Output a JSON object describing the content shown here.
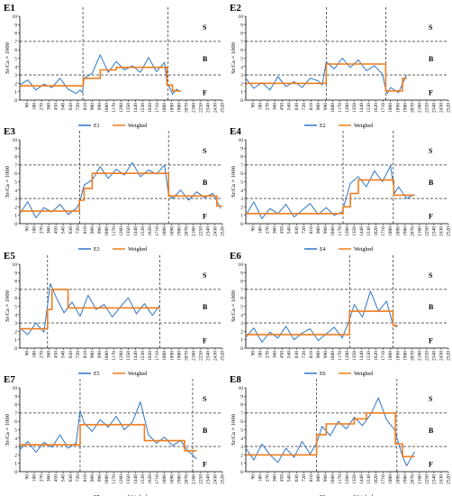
{
  "figure": {
    "ylabel": "Sr/Ca × 1000",
    "x_ticks": [
      90,
      180,
      270,
      360,
      450,
      540,
      630,
      720,
      810,
      900,
      990,
      1080,
      1170,
      1260,
      1350,
      1440,
      1530,
      1620,
      1710,
      1800,
      1890,
      1980,
      2070,
      2160,
      2250,
      2340,
      2430,
      2520
    ],
    "y_ticks": [
      0,
      1,
      2,
      3,
      4,
      5,
      6,
      7,
      8,
      9,
      10
    ],
    "colors": {
      "raw": "#2e75c8",
      "weighed": "#f07c1c",
      "threshold": "#000000"
    }
  },
  "chart_data": [
    {
      "type": "line",
      "title": "E1",
      "xlim": [
        0,
        2520
      ],
      "ylim": [
        0,
        10
      ],
      "hlines": [
        3,
        7
      ],
      "vlines": [
        785,
        1845
      ],
      "zones": [
        "S",
        "B",
        "F"
      ],
      "series": [
        {
          "name": "E1",
          "x": [
            0,
            100,
            200,
            300,
            400,
            500,
            600,
            700,
            750,
            780,
            800,
            900,
            1000,
            1100,
            1200,
            1300,
            1400,
            1500,
            1600,
            1700,
            1800,
            1830,
            1860,
            1900,
            1950,
            2000
          ],
          "y": [
            1.8,
            2.4,
            1.2,
            1.9,
            1.5,
            2.6,
            1.3,
            0.8,
            1.2,
            0.9,
            2.6,
            3.2,
            5.4,
            3.3,
            4.6,
            3.6,
            4.1,
            3.3,
            5.1,
            3.4,
            4.5,
            2.1,
            1.6,
            0.7,
            1.3,
            1.0
          ]
        },
        {
          "name": "Weighed",
          "x": [
            0,
            790,
            790,
            1000,
            1000,
            1200,
            1200,
            1830,
            1830,
            1900,
            1900,
            2000
          ],
          "y": [
            1.7,
            1.7,
            2.6,
            2.6,
            3.6,
            3.6,
            3.9,
            3.9,
            1.8,
            1.8,
            1.1,
            1.1
          ]
        }
      ],
      "legend": [
        "E1",
        "Weighed"
      ]
    },
    {
      "type": "line",
      "title": "E2",
      "xlim": [
        0,
        2520
      ],
      "ylim": [
        0,
        10
      ],
      "hlines": [
        3,
        7
      ],
      "vlines": [
        1000,
        1740
      ],
      "zones": [
        "S",
        "B",
        "F"
      ],
      "series": [
        {
          "name": "E2",
          "x": [
            0,
            100,
            200,
            300,
            400,
            500,
            600,
            700,
            800,
            900,
            950,
            1000,
            1100,
            1200,
            1300,
            1400,
            1500,
            1600,
            1700,
            1730,
            1760,
            1800,
            1900,
            2000
          ],
          "y": [
            2.6,
            1.4,
            2.1,
            1.2,
            2.8,
            1.6,
            2.2,
            1.5,
            2.6,
            2.3,
            1.8,
            4.6,
            3.7,
            5.0,
            3.9,
            4.8,
            3.5,
            4.1,
            3.1,
            1.7,
            0.8,
            1.5,
            0.9,
            3.0
          ]
        },
        {
          "name": "Weighed",
          "x": [
            0,
            1000,
            1000,
            1740,
            1740,
            1950,
            1950,
            2000
          ],
          "y": [
            2.0,
            2.0,
            4.3,
            4.3,
            1.1,
            1.1,
            2.6,
            2.6
          ]
        }
      ],
      "legend": [
        "E2",
        "Weighed"
      ]
    },
    {
      "type": "line",
      "title": "E3",
      "xlim": [
        0,
        2520
      ],
      "ylim": [
        0,
        10
      ],
      "hlines": [
        3,
        7
      ],
      "vlines": [
        745,
        1850
      ],
      "zones": [
        "S",
        "B",
        "F"
      ],
      "series": [
        {
          "name": "E3",
          "x": [
            0,
            100,
            200,
            300,
            400,
            500,
            600,
            700,
            740,
            800,
            900,
            1000,
            1100,
            1200,
            1300,
            1400,
            1500,
            1600,
            1700,
            1800,
            1850,
            1900,
            2000,
            2100,
            2200,
            2300,
            2400,
            2500
          ],
          "y": [
            1.2,
            2.6,
            0.7,
            1.9,
            1.4,
            2.3,
            1.1,
            1.8,
            2.4,
            4.6,
            5.2,
            6.8,
            5.4,
            6.5,
            5.8,
            7.3,
            5.6,
            6.4,
            5.9,
            7.0,
            3.5,
            3.0,
            4.0,
            2.8,
            3.8,
            3.1,
            3.6,
            1.8
          ]
        },
        {
          "name": "Weighed",
          "x": [
            0,
            740,
            740,
            800,
            800,
            900,
            900,
            1850,
            1850,
            2450,
            2450,
            2520
          ],
          "y": [
            1.5,
            1.5,
            2.8,
            2.8,
            4.2,
            4.2,
            6.0,
            6.0,
            3.3,
            3.3,
            2.1,
            2.1
          ]
        }
      ],
      "legend": [
        "E3",
        "Weighed"
      ]
    },
    {
      "type": "line",
      "title": "E4",
      "xlim": [
        0,
        2520
      ],
      "ylim": [
        0,
        10
      ],
      "hlines": [
        3,
        7
      ],
      "vlines": [
        1210,
        1835
      ],
      "zones": [
        "S",
        "B",
        "F"
      ],
      "series": [
        {
          "name": "E4",
          "x": [
            0,
            100,
            200,
            300,
            400,
            500,
            600,
            700,
            800,
            900,
            1000,
            1100,
            1200,
            1250,
            1300,
            1400,
            1500,
            1600,
            1700,
            1800,
            1850,
            1900,
            2000,
            2100
          ],
          "y": [
            1.0,
            2.6,
            0.6,
            1.8,
            1.2,
            2.3,
            0.8,
            1.6,
            2.4,
            1.1,
            1.9,
            1.0,
            1.4,
            3.1,
            4.8,
            5.6,
            4.4,
            6.3,
            5.0,
            6.9,
            3.6,
            4.4,
            3.0,
            3.5
          ]
        },
        {
          "name": "Weighed",
          "x": [
            0,
            1210,
            1210,
            1300,
            1300,
            1400,
            1400,
            1840,
            1840,
            2100
          ],
          "y": [
            1.2,
            1.2,
            2.0,
            2.0,
            3.6,
            3.6,
            5.2,
            5.2,
            3.4,
            3.4
          ]
        }
      ],
      "legend": [
        "E4",
        "Weighed"
      ]
    },
    {
      "type": "line",
      "title": "E5",
      "xlim": [
        0,
        2520
      ],
      "ylim": [
        0,
        10
      ],
      "hlines": [
        3,
        7
      ],
      "vlines": [
        345,
        1740
      ],
      "zones": [
        "S",
        "B",
        "F"
      ],
      "series": [
        {
          "name": "E5",
          "x": [
            0,
            100,
            200,
            300,
            340,
            380,
            450,
            550,
            650,
            750,
            850,
            950,
            1050,
            1150,
            1250,
            1350,
            1450,
            1550,
            1650,
            1740
          ],
          "y": [
            2.4,
            1.6,
            3.0,
            1.9,
            4.8,
            7.7,
            6.1,
            4.2,
            5.5,
            3.8,
            6.3,
            4.6,
            5.2,
            3.7,
            4.9,
            6.0,
            4.1,
            5.3,
            3.9,
            5.1
          ]
        },
        {
          "name": "Weighed",
          "x": [
            0,
            345,
            345,
            400,
            400,
            600,
            600,
            1740
          ],
          "y": [
            2.3,
            2.3,
            4.6,
            4.6,
            7.0,
            7.0,
            4.8,
            4.8
          ]
        }
      ],
      "legend": [
        "E5",
        "Weighed"
      ]
    },
    {
      "type": "line",
      "title": "E6",
      "xlim": [
        0,
        2520
      ],
      "ylim": [
        0,
        10
      ],
      "hlines": [
        3,
        7
      ],
      "vlines": [
        1290,
        1830
      ],
      "zones": [
        "S",
        "B",
        "F"
      ],
      "series": [
        {
          "name": "E6",
          "x": [
            0,
            100,
            200,
            300,
            400,
            500,
            600,
            700,
            800,
            900,
            1000,
            1100,
            1200,
            1290,
            1350,
            1450,
            1550,
            1650,
            1750,
            1830,
            1880
          ],
          "y": [
            1.3,
            2.4,
            0.7,
            1.9,
            1.2,
            2.6,
            1.0,
            1.8,
            2.3,
            0.9,
            1.7,
            2.5,
            1.2,
            3.4,
            5.2,
            3.7,
            6.8,
            4.4,
            5.6,
            2.8,
            2.5
          ]
        },
        {
          "name": "Weighed",
          "x": [
            0,
            1290,
            1290,
            1830,
            1830,
            1890
          ],
          "y": [
            1.6,
            1.6,
            4.4,
            4.4,
            2.7,
            2.7
          ]
        }
      ],
      "legend": [
        "E6",
        "Weighed"
      ]
    },
    {
      "type": "line",
      "title": "E7",
      "xlim": [
        0,
        2520
      ],
      "ylim": [
        0,
        10
      ],
      "hlines": [
        3,
        7
      ],
      "vlines": [
        750,
        2150
      ],
      "zones": [
        "S",
        "B",
        "F"
      ],
      "series": [
        {
          "name": "E7",
          "x": [
            0,
            100,
            200,
            300,
            400,
            500,
            600,
            700,
            750,
            800,
            900,
            1000,
            1100,
            1200,
            1300,
            1400,
            1500,
            1600,
            1700,
            1800,
            1900,
            2000,
            2100,
            2150,
            2200
          ],
          "y": [
            2.6,
            3.6,
            2.3,
            3.5,
            2.9,
            4.4,
            2.8,
            3.4,
            7.3,
            5.8,
            4.8,
            6.2,
            5.3,
            6.6,
            5.0,
            5.9,
            8.3,
            4.4,
            3.4,
            4.1,
            3.1,
            3.7,
            2.4,
            2.0,
            1.5
          ]
        },
        {
          "name": "Weighed",
          "x": [
            0,
            750,
            750,
            1550,
            1550,
            2050,
            2050,
            2200
          ],
          "y": [
            3.2,
            3.2,
            5.6,
            5.6,
            3.7,
            3.7,
            2.5,
            2.5
          ]
        }
      ],
      "legend": [
        "E7",
        "Weighed"
      ]
    },
    {
      "type": "line",
      "title": "E8",
      "xlim": [
        0,
        2520
      ],
      "ylim": [
        0,
        10
      ],
      "hlines": [
        3,
        7
      ],
      "vlines": [
        880,
        1880
      ],
      "zones": [
        "S",
        "B",
        "F"
      ],
      "series": [
        {
          "name": "E8",
          "x": [
            0,
            100,
            200,
            300,
            400,
            500,
            600,
            700,
            800,
            880,
            950,
            1050,
            1150,
            1250,
            1350,
            1450,
            1550,
            1650,
            1750,
            1850,
            1900,
            1950,
            2000,
            2050,
            2100
          ],
          "y": [
            2.8,
            1.4,
            3.3,
            2.0,
            1.1,
            2.8,
            1.7,
            3.6,
            2.1,
            3.4,
            5.4,
            4.3,
            6.0,
            5.1,
            6.5,
            5.5,
            6.8,
            8.8,
            6.2,
            5.0,
            3.4,
            1.8,
            0.7,
            1.5,
            2.4
          ]
        },
        {
          "name": "Weighed",
          "x": [
            0,
            880,
            880,
            1000,
            1000,
            1350,
            1350,
            1500,
            1500,
            1860,
            1860,
            1950,
            1950,
            2100
          ],
          "y": [
            2.0,
            2.0,
            4.4,
            4.4,
            5.7,
            5.7,
            6.3,
            6.3,
            7.0,
            7.0,
            3.3,
            3.3,
            1.8,
            1.8
          ]
        }
      ],
      "legend": [
        "E8",
        "Weighed"
      ]
    }
  ]
}
